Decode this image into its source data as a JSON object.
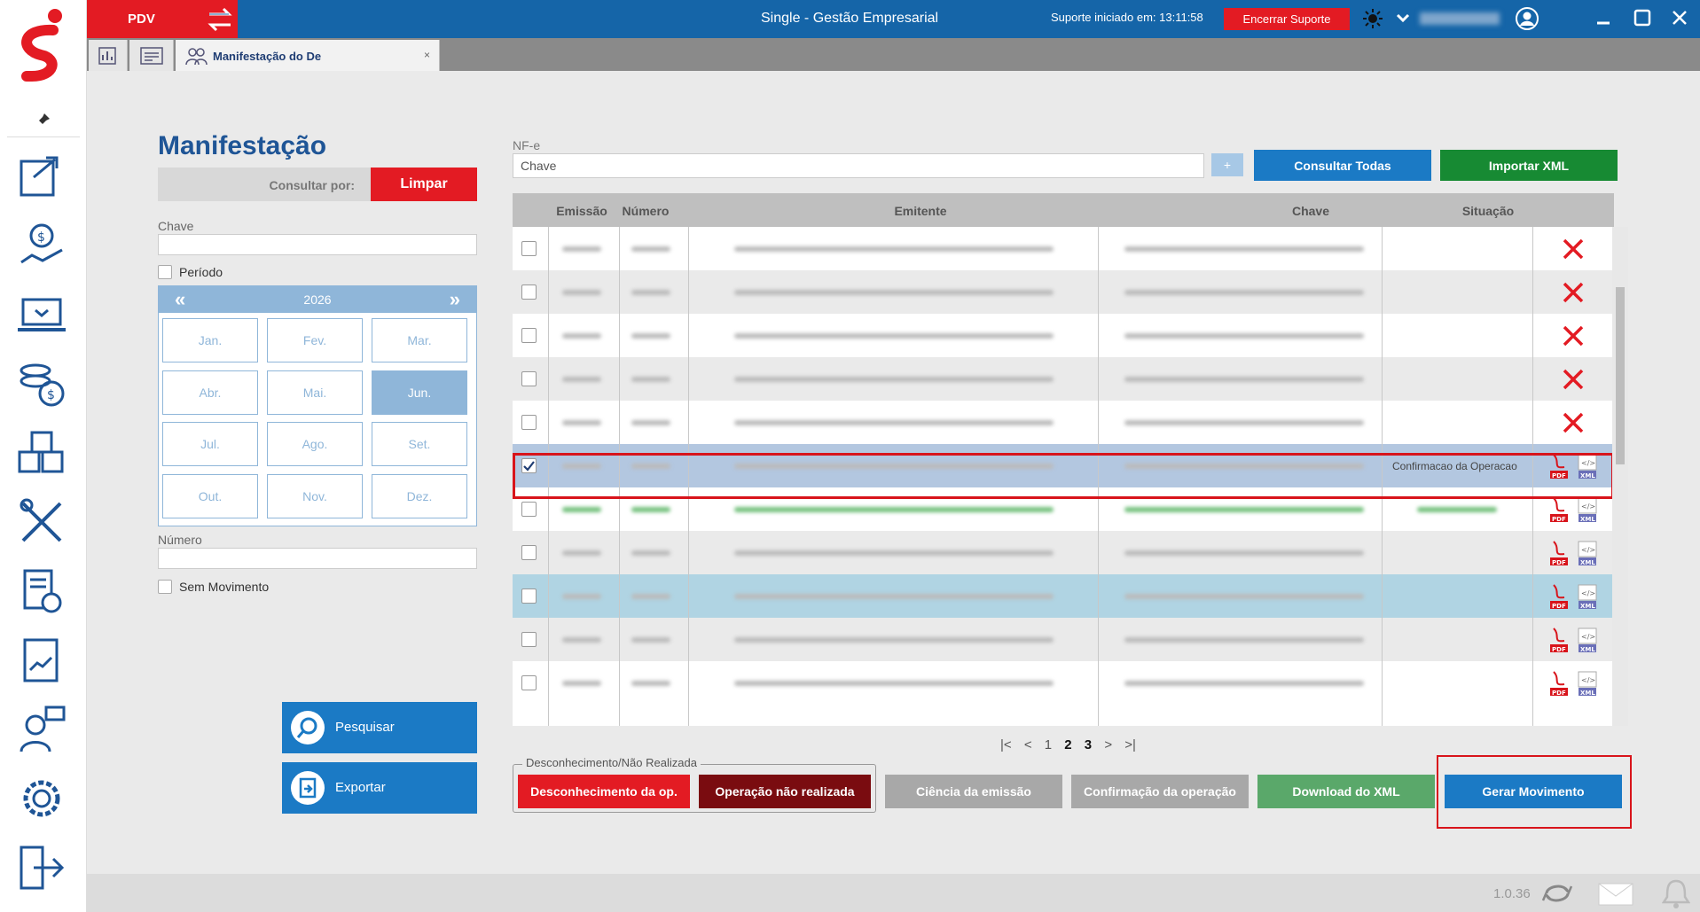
{
  "titlebar": {
    "pdv": "PDV",
    "app_title": "Single - Gestão Empresarial",
    "support_text": "Suporte iniciado em: 13:11:58",
    "end_support": "Encerrar Suporte"
  },
  "tabs": {
    "active_label": "Manifestação do De",
    "close": "×"
  },
  "left": {
    "title": "Manifestação",
    "consultar_por": "Consultar por:",
    "limpar": "Limpar",
    "chave_label": "Chave",
    "periodo_label": "Período",
    "calendar": {
      "prev": "«",
      "next": "»",
      "year": "2026",
      "months": [
        "Jan.",
        "Fev.",
        "Mar.",
        "Abr.",
        "Mai.",
        "Jun.",
        "Jul.",
        "Ago.",
        "Set.",
        "Out.",
        "Nov.",
        "Dez."
      ],
      "selected_index": 5
    },
    "numero_label": "Número",
    "sem_movimento_label": "Sem Movimento",
    "pesquisar": "Pesquisar",
    "exportar": "Exportar"
  },
  "right": {
    "nfe_label": "NF-e",
    "chave_value": "Chave",
    "plus": "+",
    "consultar_todas": "Consultar Todas",
    "importar_xml": "Importar XML"
  },
  "grid": {
    "columns": [
      "Emissão",
      "Número",
      "Emitente",
      "Chave",
      "Situação"
    ],
    "rows": [
      {
        "style": "w",
        "checked": false,
        "action": "x",
        "situacao": ""
      },
      {
        "style": "g",
        "checked": false,
        "action": "x",
        "situacao": ""
      },
      {
        "style": "w",
        "checked": false,
        "action": "x",
        "situacao": ""
      },
      {
        "style": "g",
        "checked": false,
        "action": "x",
        "situacao": ""
      },
      {
        "style": "w",
        "checked": false,
        "action": "x",
        "situacao": ""
      },
      {
        "style": "sel",
        "checked": true,
        "action": "docs",
        "situacao": "Confirmacao da Operacao"
      },
      {
        "style": "w",
        "checked": false,
        "action": "docs",
        "situacao": "",
        "green": true
      },
      {
        "style": "g",
        "checked": false,
        "action": "docs",
        "situacao": ""
      },
      {
        "style": "b",
        "checked": false,
        "action": "docs",
        "situacao": ""
      },
      {
        "style": "g",
        "checked": false,
        "action": "docs",
        "situacao": ""
      },
      {
        "style": "w",
        "checked": false,
        "action": "docs",
        "situacao": ""
      }
    ],
    "pdf_label": "PDF",
    "xml_label": "XML"
  },
  "pager": {
    "first": "|<",
    "prev": "<",
    "pages": [
      "1",
      "2",
      "3"
    ],
    "next": ">",
    "last": ">|"
  },
  "actions": {
    "group_legend": "Desconhecimento/Não Realizada",
    "desconhecimento": "Desconhecimento da op.",
    "nao_realizada": "Operação não realizada",
    "ciencia": "Ciência da emissão",
    "confirmacao": "Confirmação da operação",
    "download_xml": "Download do XML",
    "gerar_movimento": "Gerar Movimento"
  },
  "footer": {
    "version": "1.0.36"
  },
  "colors": {
    "brand_blue": "#1565a8",
    "red": "#e31b23",
    "green": "#178a33",
    "dark_red": "#7a0c10",
    "gray_btn": "#a8a8a8",
    "green_btn": "#5aa86a",
    "action_blue": "#1b7ac5"
  }
}
